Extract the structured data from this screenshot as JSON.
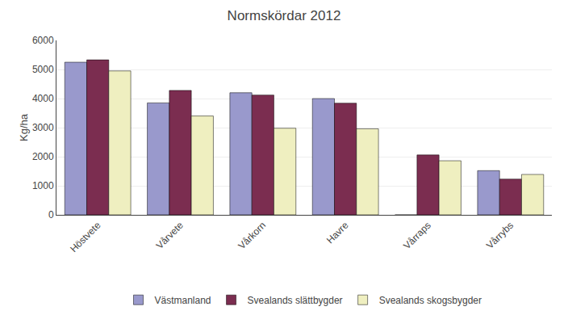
{
  "chart_data": {
    "type": "bar",
    "title": "Normskördar 2012",
    "ylabel": "Kg/ha",
    "categories": [
      "Höstvete",
      "Vårvete",
      "Vårkorn",
      "Havre",
      "Vårraps",
      "Vårrybs"
    ],
    "series": [
      {
        "name": "Västmanland",
        "color": "#9999CC",
        "values": [
          5250,
          3850,
          4200,
          4000,
          0,
          1520
        ]
      },
      {
        "name": "Svealands slättbygder",
        "color": "#7B2D50",
        "values": [
          5330,
          4280,
          4120,
          3840,
          2060,
          1230
        ]
      },
      {
        "name": "Svealands skogsbygder",
        "color": "#EFEFC0",
        "values": [
          4950,
          3400,
          2980,
          2960,
          1860,
          1390
        ]
      }
    ],
    "ylim": [
      0,
      6000
    ],
    "yticks": [
      0,
      1000,
      2000,
      3000,
      4000,
      5000,
      6000
    ],
    "grid": true,
    "legend": "bottom"
  }
}
